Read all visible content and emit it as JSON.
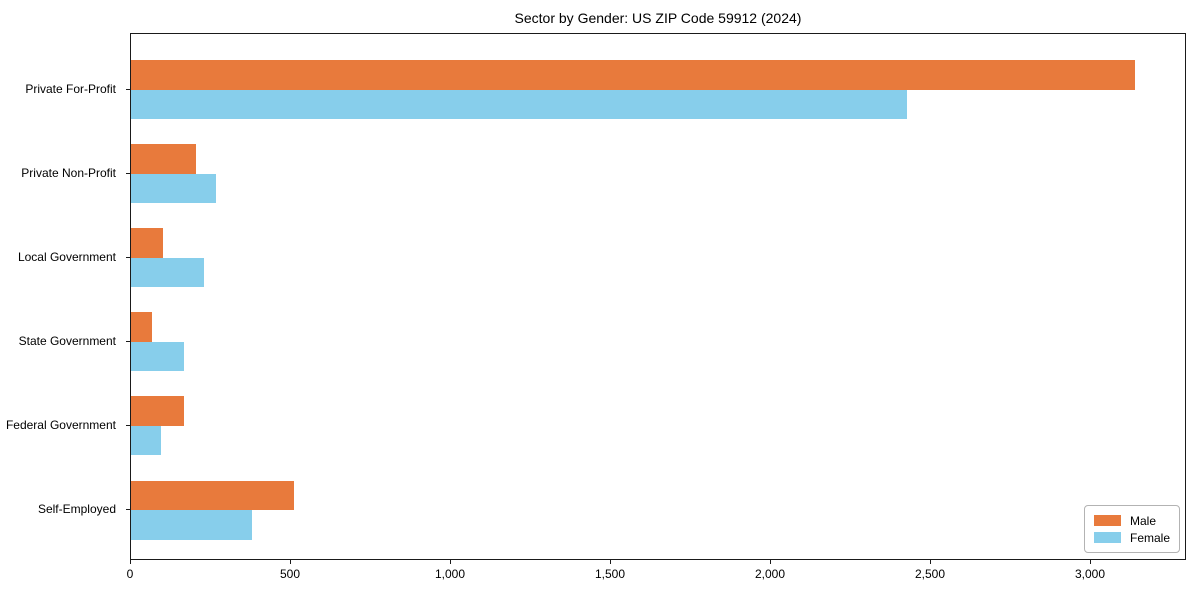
{
  "chart_data": {
    "type": "bar",
    "orientation": "horizontal",
    "title": "Sector by Gender: US ZIP Code 59912 (2024)",
    "categories": [
      "Private For-Profit",
      "Private Non-Profit",
      "Local Government",
      "State Government",
      "Federal Government",
      "Self-Employed"
    ],
    "series": [
      {
        "name": "Male",
        "color": "#e87a3c",
        "values": [
          3145,
          205,
          100,
          65,
          165,
          510
        ]
      },
      {
        "name": "Female",
        "color": "#87ceeb",
        "values": [
          2430,
          265,
          230,
          165,
          95,
          380
        ]
      }
    ],
    "xlabel": "",
    "ylabel": "",
    "xlim": [
      0,
      3300
    ],
    "xticks": [
      0,
      500,
      1000,
      1500,
      2000,
      2500,
      3000
    ],
    "xtick_labels": [
      "0",
      "500",
      "1,000",
      "1,500",
      "2,000",
      "2,500",
      "3,000"
    ],
    "grid": false,
    "legend": {
      "position": "lower right"
    }
  }
}
